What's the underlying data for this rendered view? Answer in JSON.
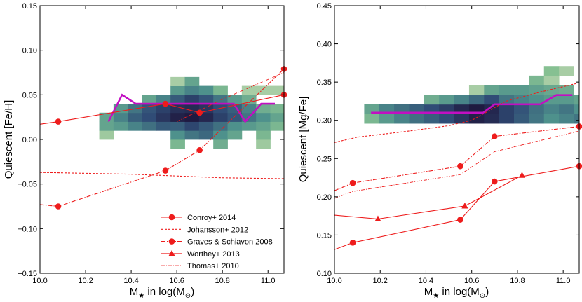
{
  "chart_data": [
    {
      "type": "heatmap+line",
      "panel": "left",
      "xlabel": "M★ in log(M⊙)",
      "ylabel": "Quiescent [Fe/H]",
      "xlim": [
        10.0,
        11.07
      ],
      "ylim": [
        -0.15,
        0.15
      ],
      "xticks": [
        10.0,
        10.2,
        10.4,
        10.6,
        10.8,
        11.0
      ],
      "xtick_labels": [
        "10.0",
        "10.2",
        "10.4",
        "10.6",
        "10.8",
        "11.0"
      ],
      "yticks": [
        -0.15,
        -0.1,
        -0.05,
        0.0,
        0.05,
        0.1,
        0.15
      ],
      "ytick_labels": [
        "−0.15",
        "−0.10",
        "−0.05",
        "0.00",
        "0.05",
        "0.10",
        "0.15"
      ],
      "heatmap": {
        "x_start": 10.26,
        "x_step": 0.0625,
        "y_start": 0.0,
        "y_step": 0.01,
        "cells": [
          [
            0,
            0,
            0.18
          ],
          [
            0,
            1,
            0.4
          ],
          [
            0,
            2,
            0.4
          ],
          [
            1,
            1,
            0.45
          ],
          [
            1,
            2,
            0.55
          ],
          [
            1,
            3,
            0.45
          ],
          [
            2,
            1,
            0.55
          ],
          [
            2,
            2,
            0.68
          ],
          [
            2,
            3,
            0.6
          ],
          [
            3,
            1,
            0.62
          ],
          [
            3,
            2,
            0.75
          ],
          [
            3,
            3,
            0.72
          ],
          [
            3,
            4,
            0.4
          ],
          [
            4,
            1,
            0.7
          ],
          [
            4,
            2,
            0.85
          ],
          [
            4,
            3,
            0.8
          ],
          [
            4,
            4,
            0.55
          ],
          [
            5,
            -1,
            0.3
          ],
          [
            5,
            0,
            0.5
          ],
          [
            5,
            1,
            0.68
          ],
          [
            5,
            2,
            0.95
          ],
          [
            5,
            3,
            0.88
          ],
          [
            5,
            4,
            0.7
          ],
          [
            5,
            5,
            0.45
          ],
          [
            5,
            6,
            0.15
          ],
          [
            6,
            0,
            0.6
          ],
          [
            6,
            1,
            0.78
          ],
          [
            6,
            2,
            0.98
          ],
          [
            6,
            3,
            0.9
          ],
          [
            6,
            4,
            0.8
          ],
          [
            6,
            5,
            0.55
          ],
          [
            6,
            6,
            0.4
          ],
          [
            7,
            0,
            0.65
          ],
          [
            7,
            1,
            0.7
          ],
          [
            7,
            2,
            0.92
          ],
          [
            7,
            3,
            0.85
          ],
          [
            7,
            4,
            0.72
          ],
          [
            7,
            5,
            0.5
          ],
          [
            8,
            -1,
            0.35
          ],
          [
            8,
            0,
            0.5
          ],
          [
            8,
            1,
            0.62
          ],
          [
            8,
            2,
            0.8
          ],
          [
            8,
            3,
            0.75
          ],
          [
            8,
            4,
            0.6
          ],
          [
            8,
            5,
            0.3
          ],
          [
            9,
            0,
            0.4
          ],
          [
            9,
            1,
            0.5
          ],
          [
            9,
            2,
            0.72
          ],
          [
            9,
            3,
            0.68
          ],
          [
            9,
            4,
            0.45
          ],
          [
            10,
            1,
            0.45
          ],
          [
            10,
            2,
            0.6
          ],
          [
            10,
            3,
            0.55
          ],
          [
            10,
            4,
            0.35
          ],
          [
            10,
            5,
            0.15
          ],
          [
            11,
            -1,
            0.18
          ],
          [
            11,
            0,
            0.3
          ],
          [
            11,
            1,
            0.4
          ],
          [
            11,
            2,
            0.5
          ],
          [
            11,
            3,
            0.35
          ],
          [
            11,
            5,
            0.15
          ],
          [
            12,
            1,
            0.3
          ],
          [
            12,
            2,
            0.4
          ],
          [
            12,
            3,
            0.3
          ],
          [
            12,
            5,
            0.15
          ]
        ]
      },
      "series": [
        {
          "name": "median",
          "style": "median",
          "x": [
            10.3,
            10.36,
            10.42,
            10.5,
            10.6,
            10.7,
            10.8,
            10.85,
            10.9,
            10.97,
            11.03
          ],
          "y": [
            0.02,
            0.05,
            0.04,
            0.04,
            0.04,
            0.04,
            0.04,
            0.04,
            0.02,
            0.04,
            0.04
          ]
        },
        {
          "name": "Conroy+ 2014",
          "style": "solid",
          "marker": "circle",
          "x": [
            10.0,
            10.08,
            10.55,
            10.7,
            11.07
          ],
          "y": [
            0.017,
            0.02,
            0.04,
            0.03,
            0.05
          ],
          "marker_x": [
            10.08,
            10.55,
            10.7,
            11.07
          ]
        },
        {
          "name": "Johansson+ 2012",
          "style": "dashed",
          "marker": "none",
          "x": [
            10.0,
            10.2,
            10.4,
            10.6,
            10.8,
            11.07
          ],
          "y": [
            -0.037,
            -0.038,
            -0.039,
            -0.041,
            -0.043,
            -0.044
          ]
        },
        {
          "name": "Graves & Schiavon 2008",
          "style": "dashdot",
          "marker": "circle",
          "x": [
            10.0,
            10.08,
            10.55,
            10.7,
            11.07
          ],
          "y": [
            -0.073,
            -0.075,
            -0.035,
            -0.012,
            0.079
          ],
          "marker_x": [
            10.08,
            10.55,
            10.7,
            11.07
          ]
        },
        {
          "name": "Thomas+ 2010",
          "style": "dashdot-thin",
          "marker": "none",
          "x": [
            10.6,
            10.8,
            11.07
          ],
          "y": [
            0.02,
            0.045,
            0.075
          ]
        }
      ],
      "legend": {
        "position": "lower-right",
        "entries": [
          {
            "label": "Conroy+ 2014",
            "style": "solid",
            "marker": "circle"
          },
          {
            "label": "Johansson+ 2012",
            "style": "dashed",
            "marker": "none"
          },
          {
            "label": "Graves & Schiavon 2008",
            "style": "dashdot",
            "marker": "circle"
          },
          {
            "label": "Worthey+ 2013",
            "style": "solid",
            "marker": "triangle"
          },
          {
            "label": "Thomas+ 2010",
            "style": "dashdot-thin",
            "marker": "none"
          }
        ]
      }
    },
    {
      "type": "heatmap+line",
      "panel": "right",
      "xlabel": "M★ in log(M⊙)",
      "ylabel": "Quiescent [Mg/Fe]",
      "xlim": [
        10.0,
        11.07
      ],
      "ylim": [
        0.1,
        0.45
      ],
      "xticks": [
        10.0,
        10.2,
        10.4,
        10.6,
        10.8,
        11.0
      ],
      "xtick_labels": [
        "10.0",
        "10.2",
        "10.4",
        "10.6",
        "10.8",
        "11.0"
      ],
      "yticks": [
        0.1,
        0.15,
        0.2,
        0.25,
        0.3,
        0.35,
        0.4,
        0.45
      ],
      "ytick_labels": [
        "0.10",
        "0.15",
        "0.20",
        "0.25",
        "0.30",
        "0.35",
        "0.40",
        "0.45"
      ],
      "heatmap": {
        "x_start": 10.13,
        "x_step": 0.0655,
        "y_start": 0.296,
        "y_step": 0.0125,
        "cells": [
          [
            0,
            0,
            0.3
          ],
          [
            0,
            1,
            0.4
          ],
          [
            1,
            0,
            0.45
          ],
          [
            1,
            1,
            0.55
          ],
          [
            2,
            0,
            0.55
          ],
          [
            2,
            1,
            0.62
          ],
          [
            3,
            0,
            0.62
          ],
          [
            3,
            1,
            0.68
          ],
          [
            4,
            0,
            0.68
          ],
          [
            4,
            1,
            0.75
          ],
          [
            4,
            2,
            0.35
          ],
          [
            5,
            0,
            0.75
          ],
          [
            5,
            1,
            0.82
          ],
          [
            5,
            2,
            0.45
          ],
          [
            6,
            0,
            0.85
          ],
          [
            6,
            1,
            0.92
          ],
          [
            6,
            2,
            0.55
          ],
          [
            7,
            0,
            0.95
          ],
          [
            7,
            1,
            0.98
          ],
          [
            7,
            2,
            0.65
          ],
          [
            7,
            3,
            0.15
          ],
          [
            8,
            0,
            0.9
          ],
          [
            8,
            1,
            0.92
          ],
          [
            8,
            2,
            0.75
          ],
          [
            8,
            3,
            0.4
          ],
          [
            9,
            0,
            0.8
          ],
          [
            9,
            1,
            0.8
          ],
          [
            9,
            2,
            0.6
          ],
          [
            9,
            3,
            0.45
          ],
          [
            10,
            0,
            0.7
          ],
          [
            10,
            1,
            0.72
          ],
          [
            10,
            2,
            0.55
          ],
          [
            10,
            3,
            0.45
          ],
          [
            11,
            0,
            0.6
          ],
          [
            11,
            1,
            0.62
          ],
          [
            11,
            2,
            0.5
          ],
          [
            11,
            3,
            0.42
          ],
          [
            11,
            4,
            0.3
          ],
          [
            12,
            0,
            0.5
          ],
          [
            12,
            1,
            0.55
          ],
          [
            12,
            2,
            0.45
          ],
          [
            12,
            3,
            0.38
          ],
          [
            12,
            4,
            0.15
          ],
          [
            12,
            5,
            0.25
          ],
          [
            13,
            0,
            0.55
          ],
          [
            13,
            1,
            0.6
          ],
          [
            13,
            2,
            0.45
          ],
          [
            13,
            3,
            0.35
          ],
          [
            13,
            5,
            0.15
          ],
          [
            14,
            0,
            0.6
          ],
          [
            14,
            1,
            0.5
          ],
          [
            14,
            2,
            0.4
          ]
        ]
      },
      "series": [
        {
          "name": "median",
          "style": "median",
          "x": [
            10.16,
            10.4,
            10.65,
            10.7,
            10.78,
            10.9,
            10.97,
            11.04
          ],
          "y": [
            0.31,
            0.31,
            0.31,
            0.321,
            0.321,
            0.321,
            0.333,
            0.333
          ]
        },
        {
          "name": "Conroy+ 2014",
          "style": "solid",
          "marker": "circle",
          "x": [
            10.0,
            10.08,
            10.55,
            10.7,
            11.07
          ],
          "y": [
            0.131,
            0.14,
            0.17,
            0.22,
            0.24
          ],
          "marker_x": [
            10.08,
            10.55,
            10.7,
            11.07
          ]
        },
        {
          "name": "Johansson+ 2012",
          "style": "dashed",
          "marker": "none",
          "x": [
            10.0,
            10.1,
            10.3,
            10.5,
            10.6,
            10.75,
            10.9,
            11.07
          ],
          "y": [
            0.271,
            0.278,
            0.285,
            0.293,
            0.3,
            0.325,
            0.337,
            0.349
          ]
        },
        {
          "name": "Graves & Schiavon 2008",
          "style": "dashdot",
          "marker": "circle",
          "x": [
            10.0,
            10.08,
            10.55,
            10.7,
            11.07
          ],
          "y": [
            0.208,
            0.218,
            0.24,
            0.279,
            0.292
          ],
          "marker_x": [
            10.08,
            10.55,
            10.7,
            11.07
          ]
        },
        {
          "name": "Worthey+ 2013",
          "style": "solid",
          "marker": "triangle",
          "x": [
            10.0,
            10.19,
            10.57,
            10.82
          ],
          "y": [
            0.176,
            0.171,
            0.188,
            0.228
          ],
          "marker_x": [
            10.19,
            10.57,
            10.82
          ]
        },
        {
          "name": "Thomas+ 2010",
          "style": "dashdot-thin",
          "marker": "none",
          "x": [
            10.0,
            10.08,
            10.55,
            10.7,
            11.07
          ],
          "y": [
            0.198,
            0.207,
            0.229,
            0.259,
            0.286
          ]
        }
      ]
    }
  ]
}
